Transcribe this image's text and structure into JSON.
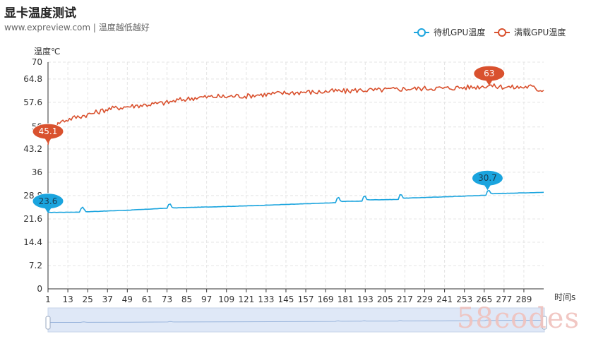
{
  "header": {
    "title": "显卡温度测试",
    "subtitle": "www.expreview.com | 温度越低越好"
  },
  "watermark": "58codes",
  "colors": {
    "idle": "#1aa4de",
    "load": "#d9512e"
  },
  "chart_data": {
    "type": "line",
    "ylabel": "温度℃",
    "xlabel": "时间s",
    "ylim": [
      0,
      70
    ],
    "y_ticks": [
      "0",
      "7.2",
      "14.4",
      "21.6",
      "28.8",
      "36",
      "43.2",
      "50",
      "57.6",
      "64.8",
      "70"
    ],
    "y_tick_values": [
      0,
      7.2,
      14.4,
      21.6,
      28.8,
      36,
      43.2,
      50,
      57.6,
      64.8,
      70
    ],
    "xlim": [
      1,
      301
    ],
    "x_ticks": [
      1,
      13,
      25,
      37,
      49,
      61,
      73,
      85,
      97,
      109,
      121,
      133,
      145,
      157,
      169,
      181,
      193,
      205,
      217,
      229,
      241,
      253,
      265,
      277,
      289
    ],
    "grid": true,
    "legend_position": "top-right",
    "series": [
      {
        "name": "待机GPU温度",
        "color": "#1aa4de",
        "points": [
          [
            1,
            23.6
          ],
          [
            20,
            23.7
          ],
          [
            21,
            24.8
          ],
          [
            22,
            25.2
          ],
          [
            23,
            24.5
          ],
          [
            24,
            23.8
          ],
          [
            50,
            24.3
          ],
          [
            73,
            24.9
          ],
          [
            74,
            26.0
          ],
          [
            75,
            26.2
          ],
          [
            76,
            25.2
          ],
          [
            77,
            25.0
          ],
          [
            120,
            25.6
          ],
          [
            175,
            26.6
          ],
          [
            176,
            28.0
          ],
          [
            177,
            28.2
          ],
          [
            178,
            27.2
          ],
          [
            179,
            27.0
          ],
          [
            191,
            27.1
          ],
          [
            192,
            28.4
          ],
          [
            193,
            28.6
          ],
          [
            194,
            27.6
          ],
          [
            195,
            27.5
          ],
          [
            213,
            27.6
          ],
          [
            214,
            29.1
          ],
          [
            215,
            29.0
          ],
          [
            216,
            28.1
          ],
          [
            217,
            28.0
          ],
          [
            240,
            28.4
          ],
          [
            266,
            28.9
          ],
          [
            267,
            30.2
          ],
          [
            268,
            30.4
          ],
          [
            269,
            29.6
          ],
          [
            270,
            29.4
          ],
          [
            301,
            29.8
          ]
        ],
        "markers": [
          {
            "x": 1,
            "y": 23.6,
            "label": "23.6"
          },
          {
            "x": 267,
            "y": 30.7,
            "label": "30.7"
          }
        ]
      },
      {
        "name": "满载GPU温度",
        "color": "#d9512e",
        "points": [
          [
            1,
            45.1
          ],
          [
            4,
            49.0
          ],
          [
            8,
            51.5
          ],
          [
            13,
            52.3
          ],
          [
            18,
            53.0
          ],
          [
            25,
            53.8
          ],
          [
            31,
            54.6
          ],
          [
            37,
            55.5
          ],
          [
            43,
            55.9
          ],
          [
            49,
            56.3
          ],
          [
            55,
            56.6
          ],
          [
            61,
            56.9
          ],
          [
            67,
            57.2
          ],
          [
            73,
            57.5
          ],
          [
            79,
            58.2
          ],
          [
            85,
            58.6
          ],
          [
            91,
            59.1
          ],
          [
            97,
            59.2
          ],
          [
            103,
            59.4
          ],
          [
            109,
            59.3
          ],
          [
            115,
            59.6
          ],
          [
            121,
            59.5
          ],
          [
            127,
            59.9
          ],
          [
            133,
            60.0
          ],
          [
            139,
            60.3
          ],
          [
            145,
            60.5
          ],
          [
            151,
            60.6
          ],
          [
            157,
            60.8
          ],
          [
            163,
            60.7
          ],
          [
            169,
            60.9
          ],
          [
            175,
            61.1
          ],
          [
            181,
            61.0
          ],
          [
            187,
            61.3
          ],
          [
            193,
            61.4
          ],
          [
            199,
            61.3
          ],
          [
            205,
            61.5
          ],
          [
            211,
            61.6
          ],
          [
            217,
            61.8
          ],
          [
            223,
            61.8
          ],
          [
            229,
            61.9
          ],
          [
            235,
            62.0
          ],
          [
            241,
            61.9
          ],
          [
            247,
            62.1
          ],
          [
            253,
            62.2
          ],
          [
            259,
            62.3
          ],
          [
            265,
            62.6
          ],
          [
            268,
            63.0
          ],
          [
            271,
            62.5
          ],
          [
            277,
            62.4
          ],
          [
            283,
            62.2
          ],
          [
            289,
            62.3
          ],
          [
            293,
            62.5
          ],
          [
            297,
            61.6
          ],
          [
            301,
            61.3
          ]
        ],
        "markers": [
          {
            "x": 1,
            "y": 45.1,
            "label": "45.1"
          },
          {
            "x": 268,
            "y": 63,
            "label": "63"
          }
        ]
      }
    ]
  }
}
